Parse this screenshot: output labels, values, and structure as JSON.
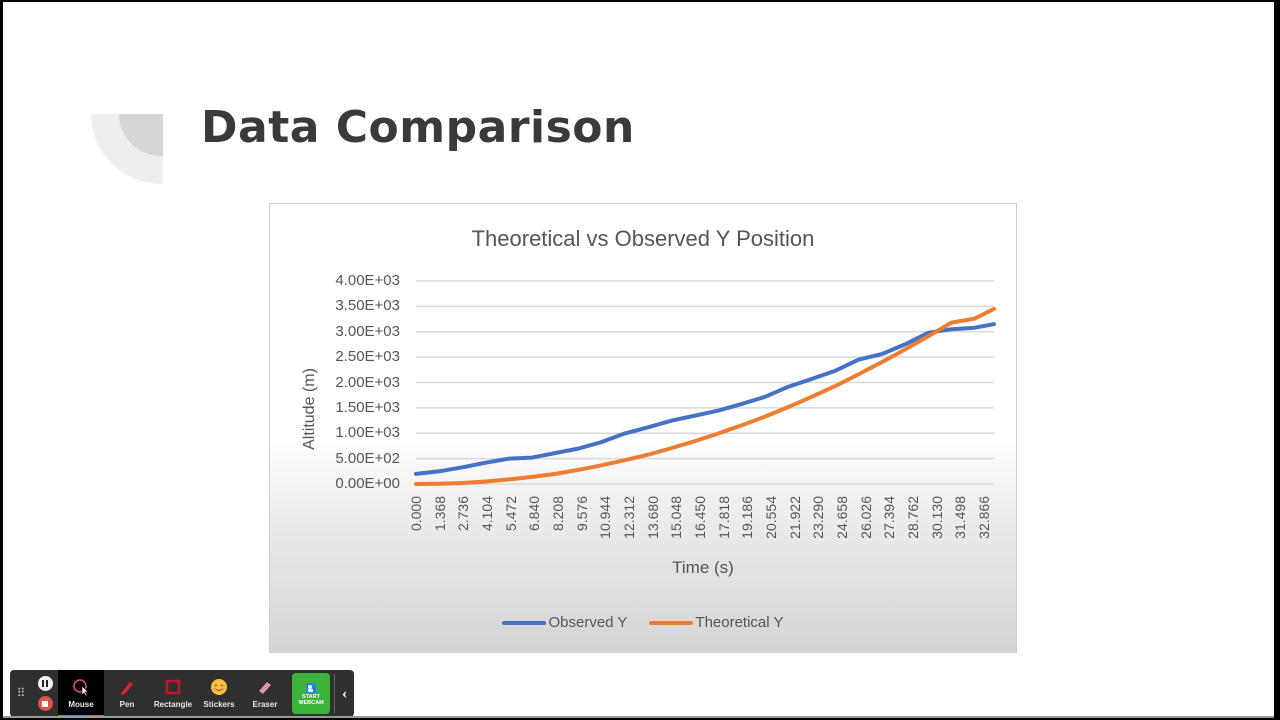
{
  "slide": {
    "title": "Data Comparison"
  },
  "chart_data": {
    "type": "line",
    "title": "Theoretical vs Observed  Y Position",
    "xlabel": "Time (s)",
    "ylabel": "Altitude (m)",
    "ylim": [
      0,
      4000
    ],
    "xlim": [
      0,
      34.0
    ],
    "grid": true,
    "legend_position": "bottom",
    "y_ticks": [
      "0.00E+00",
      "5.00E+02",
      "1.00E+03",
      "1.50E+03",
      "2.00E+03",
      "2.50E+03",
      "3.00E+03",
      "3.50E+03",
      "4.00E+03"
    ],
    "x_ticks": [
      "0.000",
      "1.368",
      "2.736",
      "4.104",
      "5.472",
      "6.840",
      "8.208",
      "9.576",
      "10.944",
      "12.312",
      "13.680",
      "15.048",
      "16.450",
      "17.818",
      "19.186",
      "20.554",
      "21.922",
      "23.290",
      "24.658",
      "26.026",
      "27.394",
      "28.762",
      "30.130",
      "31.498",
      "32.866"
    ],
    "series": [
      {
        "name": "Observed Y",
        "color": "#4472c4",
        "x": [
          0,
          1.368,
          2.736,
          4.104,
          5.472,
          6.84,
          8.208,
          9.576,
          10.944,
          12.312,
          13.68,
          15.048,
          16.45,
          17.818,
          19.186,
          20.554,
          21.922,
          23.29,
          24.658,
          26.026,
          27.394,
          28.762,
          30.13,
          31.498,
          32.866,
          34.0
        ],
        "values": [
          200,
          250,
          330,
          420,
          500,
          520,
          610,
          700,
          830,
          1000,
          1120,
          1250,
          1350,
          1450,
          1580,
          1720,
          1920,
          2070,
          2230,
          2450,
          2560,
          2750,
          2980,
          3050,
          3080,
          3150
        ]
      },
      {
        "name": "Theoretical Y",
        "color": "#ed7d31",
        "x": [
          0,
          1.368,
          2.736,
          4.104,
          5.472,
          6.84,
          8.208,
          9.576,
          10.944,
          12.312,
          13.68,
          15.048,
          16.45,
          17.818,
          19.186,
          20.554,
          21.922,
          23.29,
          24.658,
          26.026,
          27.394,
          28.762,
          30.13,
          31.498,
          32.866,
          34.0
        ],
        "values": [
          0,
          5,
          20,
          50,
          90,
          140,
          200,
          280,
          370,
          470,
          580,
          710,
          850,
          1000,
          1160,
          1330,
          1520,
          1720,
          1930,
          2160,
          2400,
          2650,
          2910,
          3180,
          3260,
          3450
        ]
      }
    ]
  },
  "legend": {
    "observed": "Observed Y",
    "theoretical": "Theoretical Y",
    "observed_color": "#4472c4",
    "theoretical_color": "#ed7d31"
  },
  "toolbar": {
    "items": [
      {
        "label": "Mouse",
        "icon": "mouse-cursor-icon",
        "active": true
      },
      {
        "label": "Pen",
        "icon": "pen-icon",
        "active": false
      },
      {
        "label": "Rectangle",
        "icon": "rectangle-icon",
        "active": false
      },
      {
        "label": "Stickers",
        "icon": "sticker-smiley-icon",
        "active": false
      },
      {
        "label": "Eraser",
        "icon": "eraser-icon",
        "active": false
      }
    ],
    "webcam_line1": "START",
    "webcam_line2": "WEBCAM",
    "collapse_glyph": "‹",
    "grip_glyph": "⠿"
  }
}
